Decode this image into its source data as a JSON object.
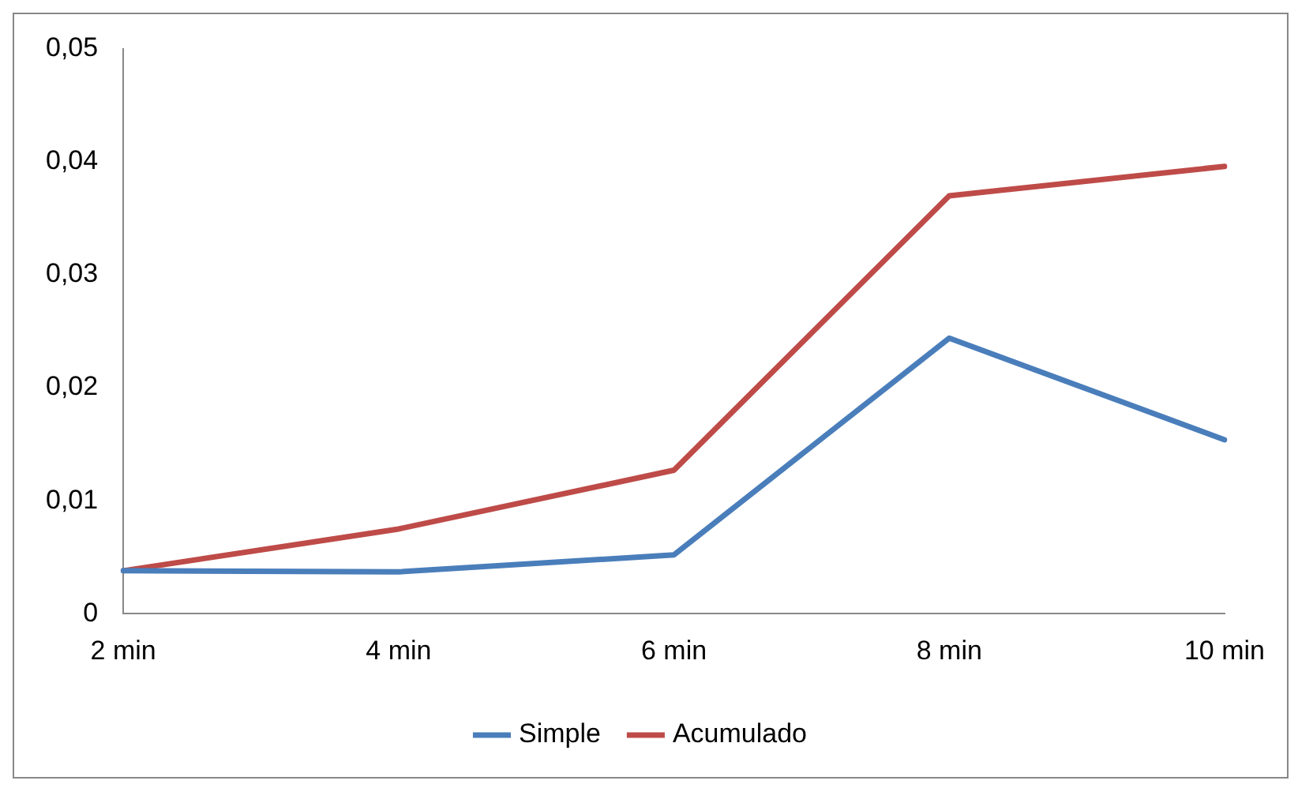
{
  "chart_data": {
    "type": "line",
    "categories": [
      "2 min",
      "4 min",
      "6 min",
      "8 min",
      "10 min"
    ],
    "series": [
      {
        "name": "Simple",
        "color": "#4a7ebb",
        "values": [
          0.0038,
          0.0037,
          0.0052,
          0.0244,
          0.0154
        ]
      },
      {
        "name": "Acumulado",
        "color": "#be4b48",
        "values": [
          0.0038,
          0.0075,
          0.0127,
          0.037,
          0.0396
        ]
      }
    ],
    "ylim": [
      0,
      0.05
    ],
    "yticks": [
      0,
      {
        "value": 0.01,
        "label": "0,01"
      },
      {
        "value": 0.02,
        "label": "0,02"
      },
      {
        "value": 0.03,
        "label": "0,03"
      },
      {
        "value": 0.04,
        "label": "0,04"
      },
      {
        "value": 0.05,
        "label": "0,05"
      }
    ],
    "grid": false,
    "legend": "bottom",
    "marker": "none",
    "line_style": "solid"
  }
}
